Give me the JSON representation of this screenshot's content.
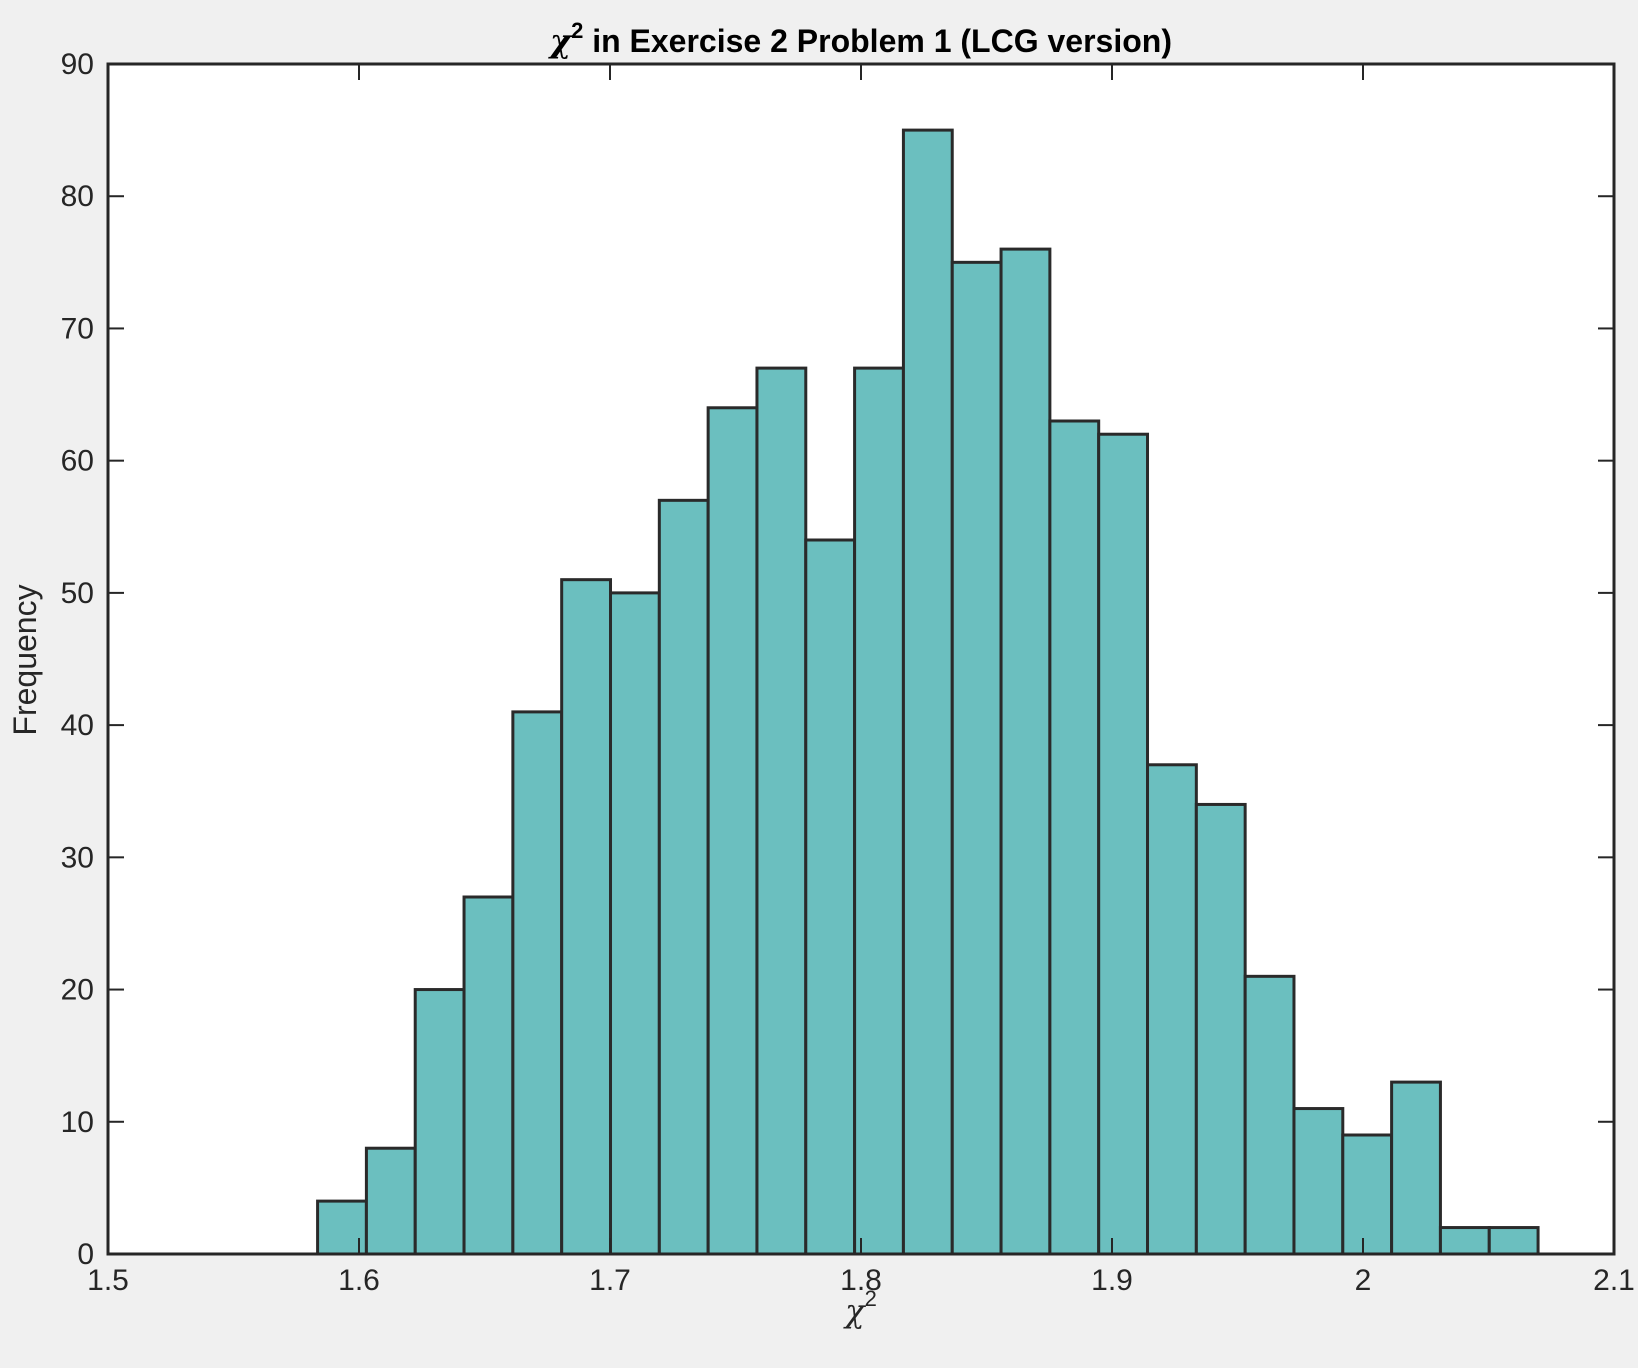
{
  "chart_data": {
    "type": "bar",
    "title": {
      "symbol": "χ",
      "superscript": "2",
      "text": " in Exercise 2 Problem 1 (LCG version)"
    },
    "xlabel": {
      "symbol": "χ",
      "superscript": "2"
    },
    "ylabel": "Frequency",
    "xlim": [
      1.5,
      2.1
    ],
    "ylim": [
      0,
      90
    ],
    "xticks": [
      "1.5",
      "1.6",
      "1.7",
      "1.8",
      "1.9",
      "2",
      "2.1"
    ],
    "yticks": [
      "0",
      "10",
      "20",
      "30",
      "40",
      "50",
      "60",
      "70",
      "80",
      "90"
    ],
    "grid": false,
    "bin_start": 1.5835,
    "bin_width": 0.01945,
    "values": [
      4,
      8,
      20,
      27,
      41,
      51,
      50,
      57,
      64,
      67,
      54,
      67,
      85,
      75,
      76,
      63,
      62,
      37,
      34,
      21,
      11,
      9,
      13,
      2,
      2
    ],
    "colors": {
      "bar_fill": "#6bbfbf",
      "bar_edge": "#2a2a2a",
      "axes_background": "#ffffff",
      "figure_background": "#f0f0f0"
    }
  }
}
